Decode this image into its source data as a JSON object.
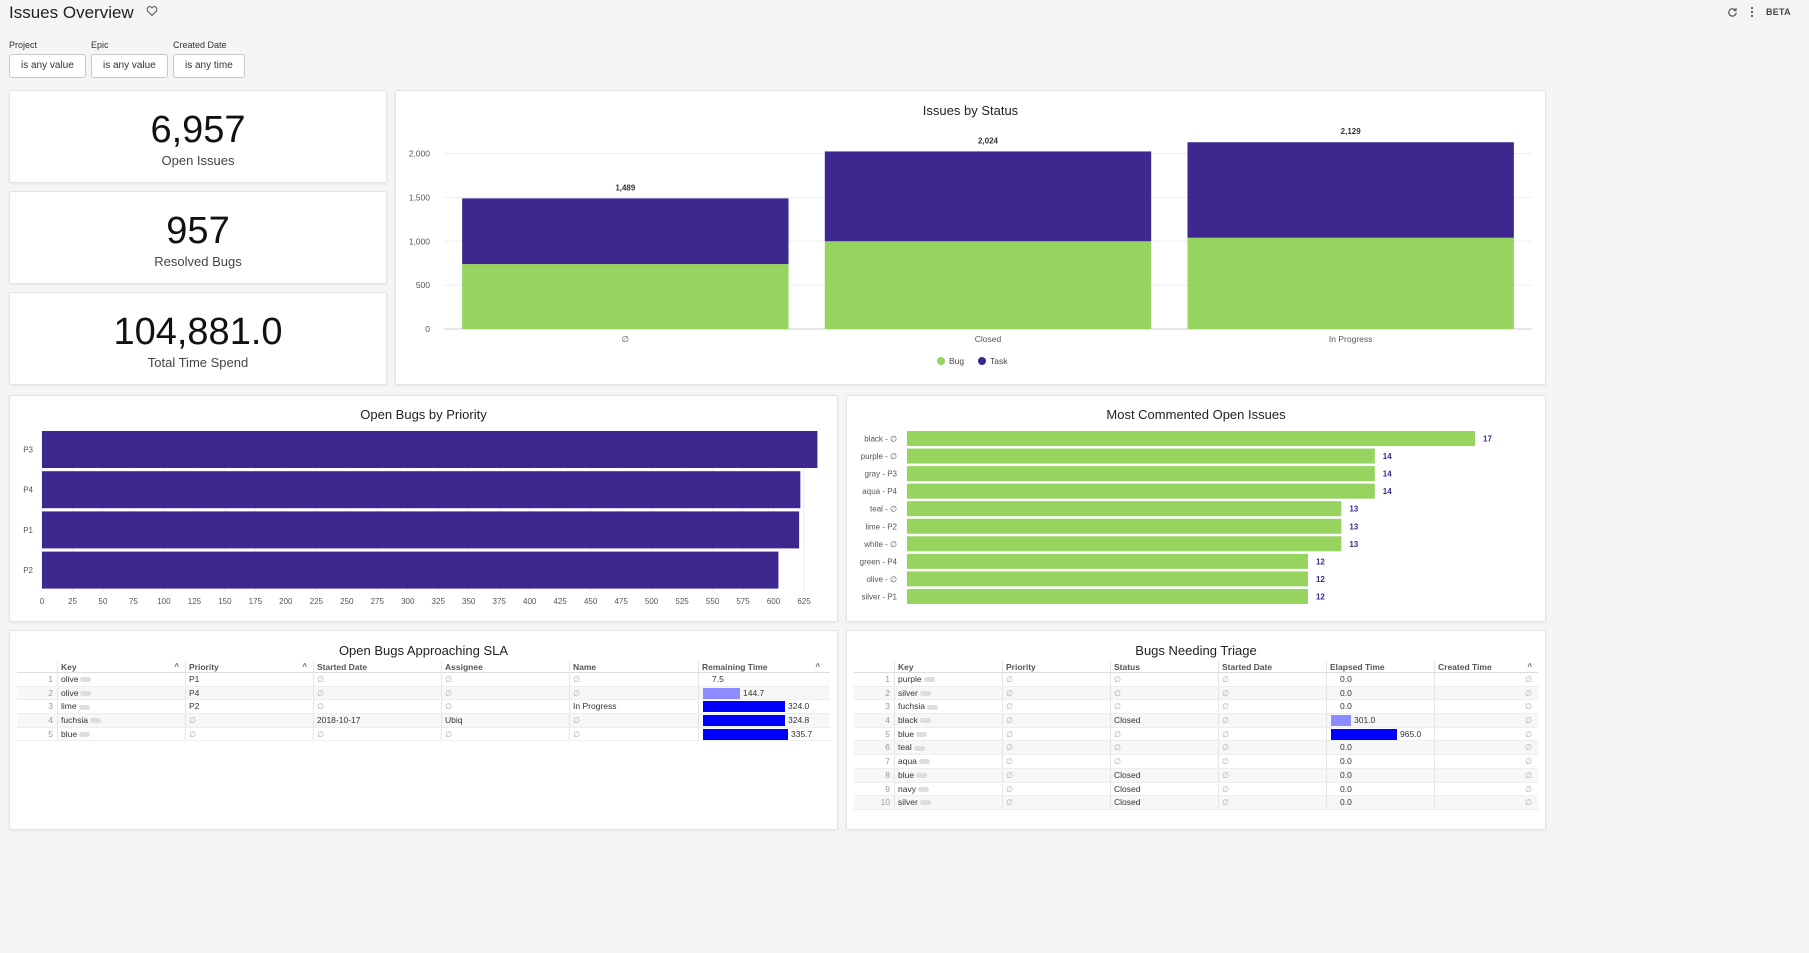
{
  "header": {
    "title": "Issues Overview",
    "beta": "BETA"
  },
  "filters": [
    {
      "label": "Project",
      "value": "is any value"
    },
    {
      "label": "Epic",
      "value": "is any value"
    },
    {
      "label": "Created Date",
      "value": "is any time"
    }
  ],
  "kpis": [
    {
      "value": "6,957",
      "label": "Open Issues"
    },
    {
      "value": "957",
      "label": "Resolved Bugs"
    },
    {
      "value": "104,881.0",
      "label": "Total Time Spend"
    }
  ],
  "colors": {
    "bug": "#96d35f",
    "task": "#3e2890",
    "blue": "#0000ff",
    "lightblue": "#8c8cff"
  },
  "chart_data": [
    {
      "type": "bar",
      "stacked": true,
      "title": "Issues by Status",
      "categories": [
        "∅",
        "Closed",
        "In Progress"
      ],
      "series": [
        {
          "name": "Bug",
          "values": [
            740,
            1000,
            1040
          ]
        },
        {
          "name": "Task",
          "values": [
            749,
            1024,
            1089
          ]
        }
      ],
      "totals": [
        "1,489",
        "2,024",
        "2,129"
      ],
      "yticks": [
        "0",
        "500",
        "1,000",
        "1,500",
        "2,000"
      ],
      "ylim": [
        0,
        2200
      ],
      "legend": "bottom"
    },
    {
      "type": "bar",
      "orientation": "horizontal",
      "title": "Open Bugs by Priority",
      "categories": [
        "P3",
        "P4",
        "P1",
        "P2"
      ],
      "values": [
        636,
        622,
        621,
        604
      ],
      "xticks": [
        "0",
        "25",
        "50",
        "75",
        "100",
        "125",
        "150",
        "175",
        "200",
        "225",
        "250",
        "275",
        "300",
        "325",
        "350",
        "375",
        "400",
        "425",
        "450",
        "475",
        "500",
        "525",
        "550",
        "575",
        "600",
        "625"
      ],
      "xlim": [
        0,
        625
      ]
    },
    {
      "type": "bar",
      "orientation": "horizontal",
      "title": "Most Commented Open Issues",
      "categories": [
        "black - ∅",
        "purple - ∅",
        "gray - P3",
        "aqua - P4",
        "teal - ∅",
        "lime - P2",
        "white - ∅",
        "green - P4",
        "olive - ∅",
        "silver - P1"
      ],
      "values": [
        17,
        14,
        14,
        14,
        13,
        13,
        13,
        12,
        12,
        12
      ],
      "labels": [
        "17",
        "14",
        "14",
        "14",
        "13",
        "13",
        "13",
        "12",
        "12",
        "12"
      ],
      "xlim": [
        0,
        17
      ]
    }
  ],
  "sla_table": {
    "title": "Open Bugs Approaching SLA",
    "columns": [
      "Key",
      "Priority",
      "Started Date",
      "Assignee",
      "Name",
      "Remaining Time"
    ],
    "rows": [
      {
        "i": "1",
        "key": "olive",
        "priority": "P1",
        "started": "∅",
        "assignee": "∅",
        "name": "∅",
        "time": "7.5",
        "frac": 0
      },
      {
        "i": "2",
        "key": "olive",
        "priority": "P4",
        "started": "∅",
        "assignee": "∅",
        "name": "∅",
        "time": "144.7",
        "frac": 0.43
      },
      {
        "i": "3",
        "key": "lime",
        "priority": "P2",
        "started": "∅",
        "assignee": "∅",
        "name": "In Progress",
        "time": "324.0",
        "frac": 0.965
      },
      {
        "i": "4",
        "key": "fuchsia",
        "priority": "∅",
        "started": "2018-10-17",
        "assignee": "Ubiq",
        "name": "∅",
        "time": "324.8",
        "frac": 0.967
      },
      {
        "i": "5",
        "key": "blue",
        "priority": "∅",
        "started": "∅",
        "assignee": "∅",
        "name": "∅",
        "time": "335.7",
        "frac": 1
      }
    ]
  },
  "triage_table": {
    "title": "Bugs Needing Triage",
    "columns": [
      "Key",
      "Priority",
      "Status",
      "Started Date",
      "Elapsed Time",
      "Created Time"
    ],
    "rows": [
      {
        "i": "1",
        "key": "purple",
        "priority": "∅",
        "status": "∅",
        "started": "∅",
        "elapsed": "0.0",
        "created": "∅",
        "frac": 0
      },
      {
        "i": "2",
        "key": "silver",
        "priority": "∅",
        "status": "∅",
        "started": "∅",
        "elapsed": "0.0",
        "created": "∅",
        "frac": 0
      },
      {
        "i": "3",
        "key": "fuchsia",
        "priority": "∅",
        "status": "∅",
        "started": "∅",
        "elapsed": "0.0",
        "created": "∅",
        "frac": 0
      },
      {
        "i": "4",
        "key": "black",
        "priority": "∅",
        "status": "Closed",
        "started": "∅",
        "elapsed": "301.0",
        "created": "∅",
        "frac": 0.31
      },
      {
        "i": "5",
        "key": "blue",
        "priority": "∅",
        "status": "∅",
        "started": "∅",
        "elapsed": "965.0",
        "created": "∅",
        "frac": 1
      },
      {
        "i": "6",
        "key": "teal",
        "priority": "∅",
        "status": "∅",
        "started": "∅",
        "elapsed": "0.0",
        "created": "∅",
        "frac": 0
      },
      {
        "i": "7",
        "key": "aqua",
        "priority": "∅",
        "status": "∅",
        "started": "∅",
        "elapsed": "0.0",
        "created": "∅",
        "frac": 0
      },
      {
        "i": "8",
        "key": "blue",
        "priority": "∅",
        "status": "Closed",
        "started": "∅",
        "elapsed": "0.0",
        "created": "∅",
        "frac": 0
      },
      {
        "i": "9",
        "key": "navy",
        "priority": "∅",
        "status": "Closed",
        "started": "∅",
        "elapsed": "0.0",
        "created": "∅",
        "frac": 0
      },
      {
        "i": "10",
        "key": "silver",
        "priority": "∅",
        "status": "Closed",
        "started": "∅",
        "elapsed": "0.0",
        "created": "∅",
        "frac": 0
      }
    ]
  }
}
